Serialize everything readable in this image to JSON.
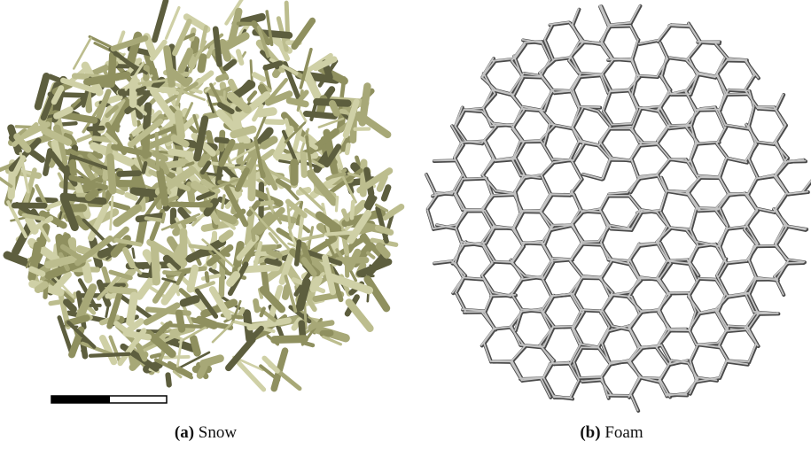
{
  "figure": {
    "panels": [
      {
        "label": "(a)",
        "caption": "Snow"
      },
      {
        "label": "(b)",
        "caption": "Foam"
      }
    ]
  }
}
